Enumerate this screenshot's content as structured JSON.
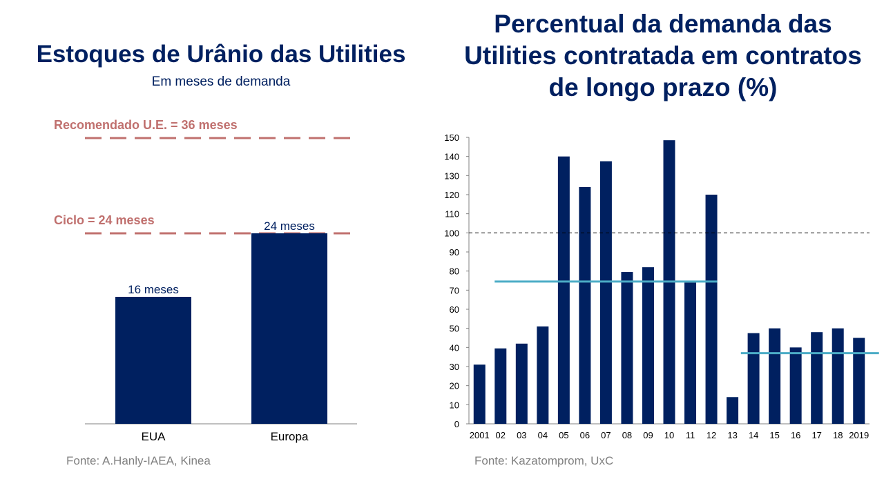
{
  "left": {
    "title": "Estoques de Urânio das Utilities",
    "subtitle": "Em meses de demanda",
    "source": "Fonte: A.Hanly-IAEA, Kinea"
  },
  "right": {
    "title": "Percentual da demanda das Utilities contratada em contratos de longo prazo (%)",
    "source": "Fonte: Kazatomprom, UxC"
  },
  "colors": {
    "bar": "#002060",
    "reference": "#C0706E",
    "average": "#4BACC6",
    "dashed": "#000000",
    "axis": "#808080"
  },
  "chart_data": [
    {
      "type": "bar",
      "title": "Estoques de Urânio das Utilities",
      "subtitle": "Em meses de demanda",
      "categories": [
        "EUA",
        "Europa"
      ],
      "values": [
        16,
        24
      ],
      "data_labels": [
        "16 meses",
        "24 meses"
      ],
      "ylim": [
        0,
        36
      ],
      "grid": false,
      "reference_lines": [
        {
          "label": "Recomendado U.E. = 36 meses",
          "value": 36
        },
        {
          "label": "Ciclo = 24 meses",
          "value": 24
        }
      ]
    },
    {
      "type": "bar",
      "title": "Percentual da demanda das Utilities contratada em contratos de longo prazo (%)",
      "categories": [
        "2001",
        "02",
        "03",
        "04",
        "05",
        "06",
        "07",
        "08",
        "09",
        "10",
        "11",
        "12",
        "13",
        "14",
        "15",
        "16",
        "17",
        "18",
        "2019"
      ],
      "values": [
        31,
        39.5,
        42,
        51,
        140,
        124,
        137.5,
        79.5,
        82,
        148.5,
        74,
        120,
        14,
        47.5,
        50,
        40,
        48,
        50,
        45
      ],
      "yticks": [
        0,
        10,
        20,
        30,
        40,
        50,
        60,
        70,
        80,
        90,
        100,
        110,
        120,
        130,
        140,
        150
      ],
      "ylim": [
        0,
        150
      ],
      "grid": false,
      "reference_line": 100,
      "average_lines": [
        {
          "from": "02",
          "to": "12",
          "value": 74.5
        },
        {
          "from": "14",
          "to": "2019",
          "value": 37
        }
      ]
    }
  ]
}
